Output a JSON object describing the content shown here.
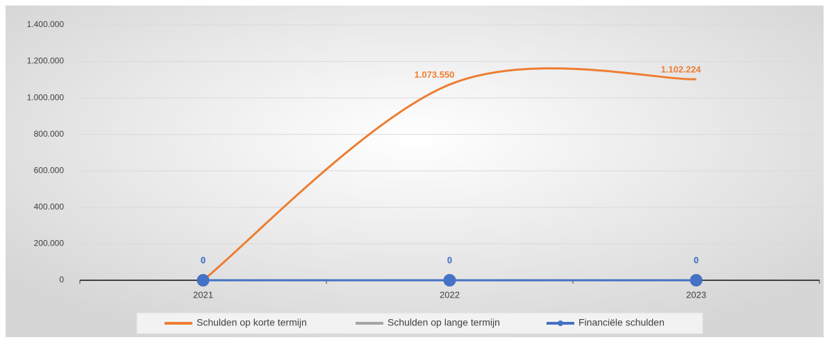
{
  "chart_data": {
    "type": "line",
    "categories": [
      "2021",
      "2022",
      "2023"
    ],
    "series": [
      {
        "name": "Schulden op korte termijn",
        "color": "#ed7d31",
        "values": [
          0,
          1073550,
          1102224
        ],
        "value_labels": [
          "0",
          "1.073.550",
          "1.102.224"
        ],
        "smooth": true
      },
      {
        "name": "Schulden op lange termijn",
        "color": "#a5a5a5",
        "values": [
          0,
          0,
          0
        ],
        "value_labels": [
          "0",
          "0",
          "0"
        ],
        "smooth": true
      },
      {
        "name": "Financiële schulden",
        "color": "#4472c4",
        "values": [
          0,
          0,
          0
        ],
        "value_labels": [
          "0",
          "0",
          "0"
        ],
        "markers": true
      }
    ],
    "ylim": [
      0,
      1400000
    ],
    "yticks": [
      0,
      {
        "value": 200000,
        "label": "200.000"
      },
      {
        "value": 400000,
        "label": "400.000"
      },
      {
        "value": 600000,
        "label": "600.000"
      },
      {
        "value": 800000,
        "label": "800.000"
      },
      {
        "value": 1000000,
        "label": "1.000.000"
      },
      {
        "value": 1200000,
        "label": "1.200.000"
      },
      {
        "value": 1400000,
        "label": "1.400.000"
      }
    ],
    "grid": true,
    "legend": "bottom"
  }
}
